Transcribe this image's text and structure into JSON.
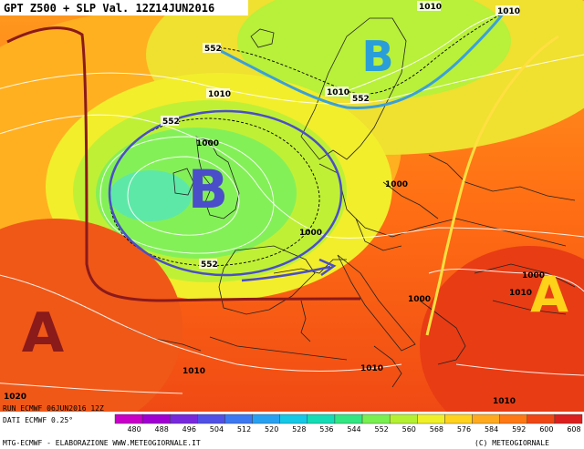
{
  "header": {
    "title": "GPT Z500 + SLP Val. 12Z14JUN2016"
  },
  "footer": {
    "run": "RUN ECMWF 06JUN2016 12Z",
    "dati": "DATI ECMWF 0.25°",
    "credits": "MTG-ECMWF - ELABORAZIONE WWW.METEOGIORNALE.IT",
    "copyright": "(C) METEOGIORNALE"
  },
  "pressure_centers": [
    {
      "letter": "B",
      "color": "#4a4ec8",
      "region": "low over British Isles"
    },
    {
      "letter": "B",
      "color": "#2a9ed8",
      "region": "low over Scandinavia"
    },
    {
      "letter": "A",
      "color": "#8b1a1a",
      "region": "high west of Iberia"
    },
    {
      "letter": "A",
      "color": "#ffd21a",
      "region": "high east Mediterranean"
    }
  ],
  "isobar_labels": [
    "1010",
    "1010",
    "1010",
    "1010",
    "1000",
    "1000",
    "1000",
    "1000",
    "1000",
    "1010",
    "1010",
    "1010",
    "1010",
    "1020"
  ],
  "isohypse_labels": [
    "552",
    "552",
    "552",
    "552"
  ],
  "scale": {
    "ticks": [
      "480",
      "488",
      "496",
      "504",
      "512",
      "520",
      "528",
      "536",
      "544",
      "552",
      "560",
      "568",
      "576",
      "584",
      "592",
      "600",
      "608"
    ],
    "colors": [
      "#c800c8",
      "#a000d2",
      "#7828dc",
      "#5050e6",
      "#3c78f0",
      "#28a0f0",
      "#14c8e6",
      "#14dcb4",
      "#32e682",
      "#78f050",
      "#b4f032",
      "#f0f028",
      "#ffd21e",
      "#ffaa1e",
      "#ff7814",
      "#f04614",
      "#dc1e1e"
    ]
  },
  "colors": {
    "low_circle": "#4a4ec8",
    "trough_line": "#3aa0d8",
    "ridge_line_west": "#8b1a1a",
    "ridge_line_east": "#ffe040"
  }
}
